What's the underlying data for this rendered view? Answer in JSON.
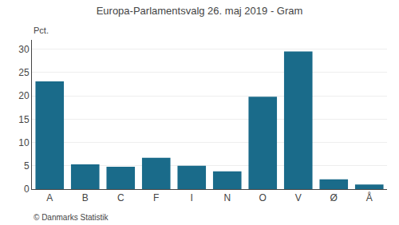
{
  "chart_data": {
    "type": "bar",
    "title": "Europa-Parlamentsvalg 26. maj 2019 - Gram",
    "categories": [
      "A",
      "B",
      "C",
      "F",
      "I",
      "N",
      "O",
      "V",
      "Ø",
      "Å"
    ],
    "values": [
      23.1,
      5.3,
      4.8,
      6.7,
      5.0,
      3.8,
      19.8,
      29.5,
      2.1,
      1.0
    ],
    "color": "#1a6b8a",
    "ylabel": "Pct.",
    "ylim": [
      0,
      32
    ],
    "yticks": [
      0,
      5,
      10,
      15,
      20,
      25,
      30
    ],
    "grid": true,
    "annotations": [
      "© Danmarks Statistik"
    ]
  }
}
